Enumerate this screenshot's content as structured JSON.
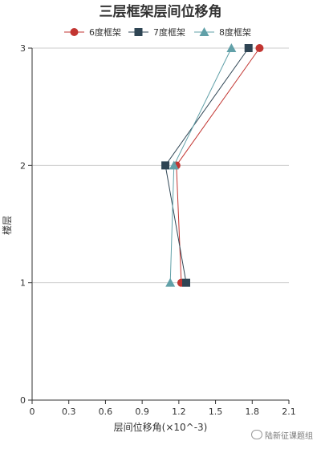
{
  "chart_data": {
    "type": "line",
    "title": "三层框架层间位移角",
    "xlabel": "层间位移角(×10^-3)",
    "ylabel": "楼层",
    "xlim": [
      0,
      2.1
    ],
    "ylim": [
      0,
      3
    ],
    "x_ticks": [
      "0",
      "0.3",
      "0.6",
      "0.9",
      "1.2",
      "1.5",
      "1.8",
      "2.1"
    ],
    "y_ticks": [
      "0",
      "1",
      "2",
      "3"
    ],
    "grid": "horizontal",
    "legend_position": "top",
    "series": [
      {
        "name": "6度框架",
        "color": "#c23531",
        "marker": "circle",
        "points": [
          {
            "x": 1.22,
            "y": 1
          },
          {
            "x": 1.18,
            "y": 2
          },
          {
            "x": 1.86,
            "y": 3
          }
        ]
      },
      {
        "name": "7度框架",
        "color": "#2f4554",
        "marker": "square",
        "points": [
          {
            "x": 1.26,
            "y": 1
          },
          {
            "x": 1.09,
            "y": 2
          },
          {
            "x": 1.77,
            "y": 3
          }
        ]
      },
      {
        "name": "8度框架",
        "color": "#61a0a8",
        "marker": "triangle",
        "points": [
          {
            "x": 1.13,
            "y": 1
          },
          {
            "x": 1.16,
            "y": 2
          },
          {
            "x": 1.63,
            "y": 3
          }
        ]
      }
    ]
  },
  "watermark": {
    "text": "陆新征课题组",
    "icon": "wechat-icon"
  }
}
